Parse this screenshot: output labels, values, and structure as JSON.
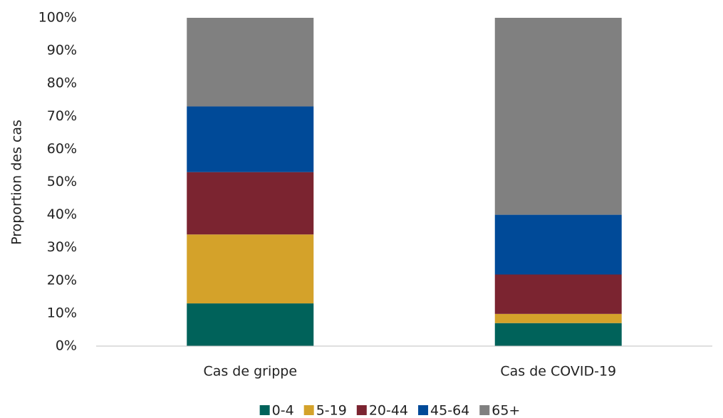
{
  "chart_data": {
    "type": "stacked_bar",
    "ylabel": "Proportion des cas",
    "categories": [
      "Cas de grippe",
      "Cas de COVID-19"
    ],
    "series": [
      {
        "name": "0-4",
        "color": "#00625a",
        "values": [
          13,
          7
        ]
      },
      {
        "name": "5-19",
        "color": "#d4a22a",
        "values": [
          21,
          2.8
        ]
      },
      {
        "name": "20-44",
        "color": "#7b2430",
        "values": [
          19,
          12
        ]
      },
      {
        "name": "45-64",
        "color": "#004a98",
        "values": [
          20,
          18.2
        ]
      },
      {
        "name": "65+",
        "color": "#808080",
        "values": [
          27,
          60
        ]
      }
    ],
    "ylim": [
      0,
      100
    ],
    "yticks": [
      {
        "value": 0,
        "label": "0%"
      },
      {
        "value": 10,
        "label": "10%"
      },
      {
        "value": 20,
        "label": "20%"
      },
      {
        "value": 30,
        "label": "30%"
      },
      {
        "value": 40,
        "label": "40%"
      },
      {
        "value": 50,
        "label": "50%"
      },
      {
        "value": 60,
        "label": "60%"
      },
      {
        "value": 70,
        "label": "70%"
      },
      {
        "value": 80,
        "label": "80%"
      },
      {
        "value": 90,
        "label": "90%"
      },
      {
        "value": 100,
        "label": "100%"
      }
    ],
    "legend": "bottom"
  }
}
